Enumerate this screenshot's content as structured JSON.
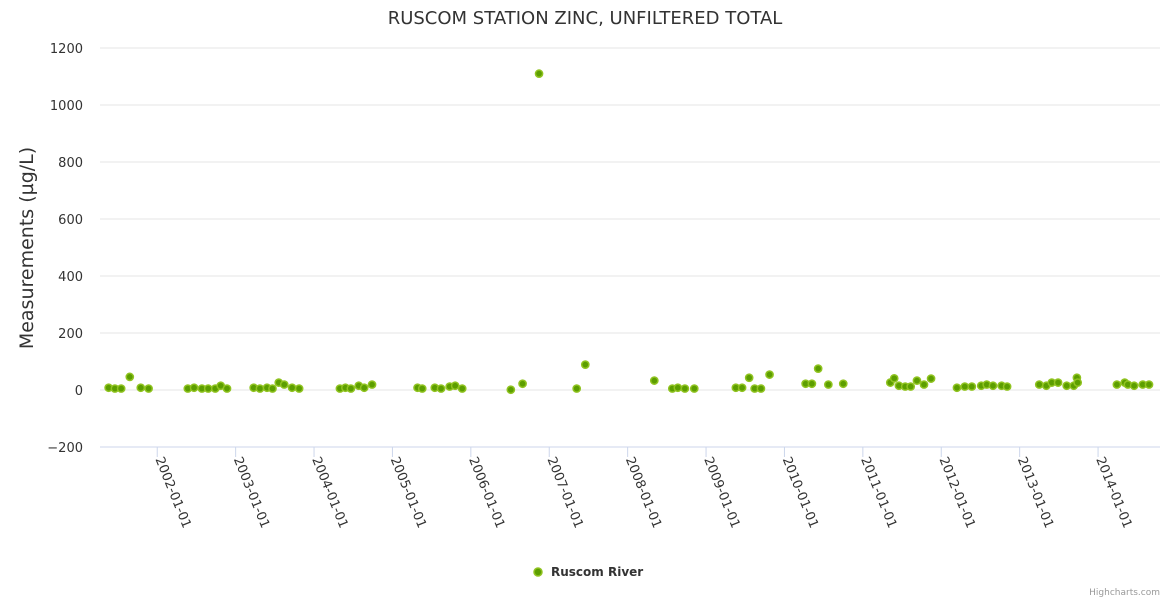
{
  "chart_data": {
    "type": "scatter",
    "title": "RUSCOM STATION ZINC, UNFILTERED TOTAL",
    "xlabel": "",
    "ylabel": "Measurements (µg/L)",
    "ylim": [
      -200,
      1200
    ],
    "xlim": [
      2001.27,
      2014.79
    ],
    "yticks": [
      -200,
      0,
      200,
      400,
      600,
      800,
      1000,
      1200
    ],
    "ytick_labels": [
      "−200",
      "0",
      "200",
      "400",
      "600",
      "800",
      "1000",
      "1200"
    ],
    "xticks": [
      2002,
      2003,
      2004,
      2005,
      2006,
      2007,
      2008,
      2009,
      2010,
      2011,
      2012,
      2013,
      2014
    ],
    "xtick_labels": [
      "2002-01-01",
      "2003-01-01",
      "2004-01-01",
      "2005-01-01",
      "2006-01-01",
      "2007-01-01",
      "2008-01-01",
      "2009-01-01",
      "2010-01-01",
      "2011-01-01",
      "2012-01-01",
      "2013-01-01",
      "2014-01-01"
    ],
    "grid": true,
    "legend_position": "bottom-center",
    "series": [
      {
        "name": "Ruscom River",
        "color": "#5c9e00",
        "points": [
          [
            2001.38,
            8
          ],
          [
            2001.46,
            5
          ],
          [
            2001.54,
            5
          ],
          [
            2001.65,
            46
          ],
          [
            2001.79,
            8
          ],
          [
            2001.89,
            5
          ],
          [
            2002.39,
            5
          ],
          [
            2002.47,
            8
          ],
          [
            2002.57,
            5
          ],
          [
            2002.65,
            5
          ],
          [
            2002.74,
            5
          ],
          [
            2002.81,
            15
          ],
          [
            2002.89,
            5
          ],
          [
            2003.23,
            8
          ],
          [
            2003.31,
            5
          ],
          [
            2003.4,
            8
          ],
          [
            2003.47,
            5
          ],
          [
            2003.55,
            26
          ],
          [
            2003.62,
            19
          ],
          [
            2003.72,
            8
          ],
          [
            2003.81,
            5
          ],
          [
            2004.33,
            5
          ],
          [
            2004.4,
            8
          ],
          [
            2004.47,
            5
          ],
          [
            2004.57,
            15
          ],
          [
            2004.64,
            8
          ],
          [
            2004.74,
            19
          ],
          [
            2005.32,
            8
          ],
          [
            2005.38,
            5
          ],
          [
            2005.54,
            8
          ],
          [
            2005.62,
            5
          ],
          [
            2005.73,
            12
          ],
          [
            2005.8,
            15
          ],
          [
            2005.89,
            5
          ],
          [
            2006.51,
            1
          ],
          [
            2006.66,
            22
          ],
          [
            2006.87,
            1110
          ],
          [
            2007.35,
            5
          ],
          [
            2007.46,
            89
          ],
          [
            2008.34,
            33
          ],
          [
            2008.57,
            5
          ],
          [
            2008.64,
            8
          ],
          [
            2008.73,
            5
          ],
          [
            2008.85,
            5
          ],
          [
            2009.38,
            8
          ],
          [
            2009.46,
            8
          ],
          [
            2009.55,
            43
          ],
          [
            2009.62,
            5
          ],
          [
            2009.7,
            5
          ],
          [
            2009.81,
            54
          ],
          [
            2010.27,
            22
          ],
          [
            2010.35,
            22
          ],
          [
            2010.43,
            75
          ],
          [
            2010.56,
            19
          ],
          [
            2010.75,
            22
          ],
          [
            2011.35,
            26
          ],
          [
            2011.4,
            41
          ],
          [
            2011.46,
            15
          ],
          [
            2011.54,
            12
          ],
          [
            2011.61,
            12
          ],
          [
            2011.69,
            33
          ],
          [
            2011.78,
            19
          ],
          [
            2011.87,
            40
          ],
          [
            2012.2,
            8
          ],
          [
            2012.3,
            12
          ],
          [
            2012.39,
            12
          ],
          [
            2012.51,
            15
          ],
          [
            2012.58,
            19
          ],
          [
            2012.66,
            15
          ],
          [
            2012.77,
            15
          ],
          [
            2012.84,
            12
          ],
          [
            2013.25,
            19
          ],
          [
            2013.34,
            15
          ],
          [
            2013.41,
            26
          ],
          [
            2013.49,
            26
          ],
          [
            2013.6,
            15
          ],
          [
            2013.69,
            15
          ],
          [
            2013.73,
            43
          ],
          [
            2013.74,
            26
          ],
          [
            2014.24,
            19
          ],
          [
            2014.34,
            26
          ],
          [
            2014.38,
            19
          ],
          [
            2014.46,
            15
          ],
          [
            2014.57,
            19
          ],
          [
            2014.65,
            19
          ]
        ]
      }
    ]
  },
  "credits": "Highcharts.com"
}
